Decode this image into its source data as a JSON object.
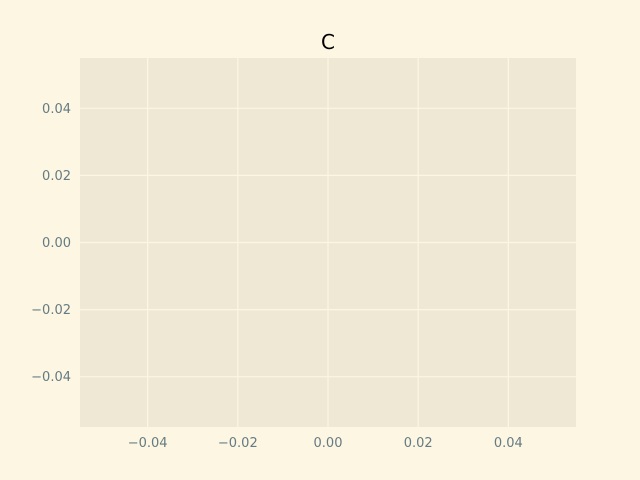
{
  "chart_data": {
    "type": "line",
    "title": "C",
    "xlabel": "",
    "ylabel": "",
    "series": [],
    "xlim": [
      -0.055,
      0.055
    ],
    "ylim": [
      -0.055,
      0.055
    ],
    "x_ticks": [
      -0.04,
      -0.02,
      0.0,
      0.02,
      0.04
    ],
    "x_tick_labels": [
      "−0.04",
      "−0.02",
      "0.00",
      "0.02",
      "0.04"
    ],
    "y_ticks": [
      -0.04,
      -0.02,
      0.0,
      0.02,
      0.04
    ],
    "y_tick_labels": [
      "−0.04",
      "−0.02",
      "0.00",
      "0.02",
      "0.04"
    ],
    "grid": true,
    "legend": "none"
  },
  "colors": {
    "figure_background": "#fdf6e3",
    "plot_background": "#eee8d5",
    "grid": "#fdf6e3",
    "tick_label": "#657b83",
    "title": "#000000"
  }
}
